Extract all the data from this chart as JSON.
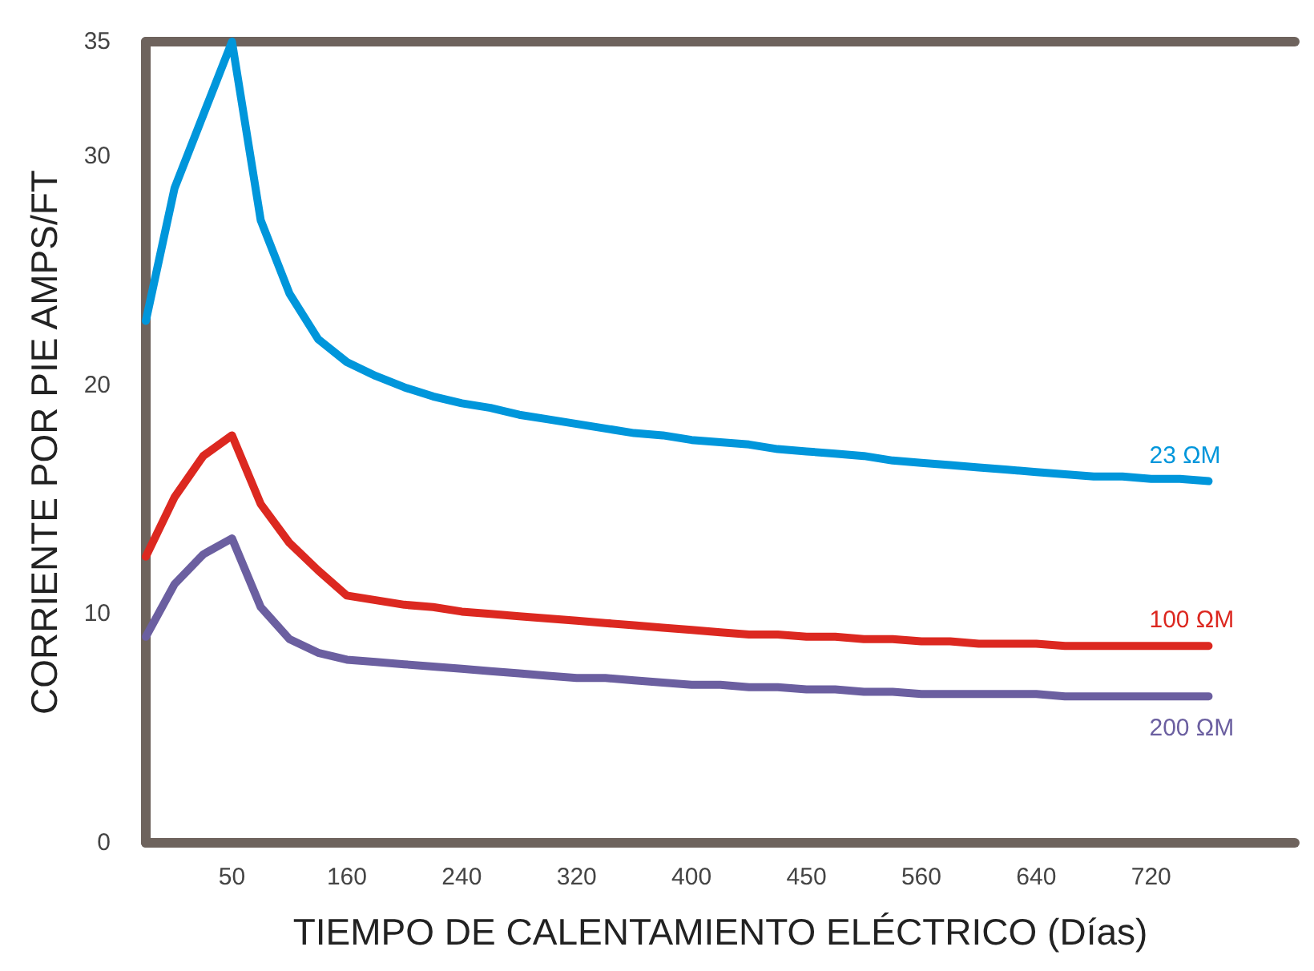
{
  "chart_data": {
    "type": "line",
    "xlabel": "TIEMPO DE CALENTAMIENTO ELÉCTRICO (Días)",
    "ylabel": "CORRIENTE POR PIE AMPS/FT",
    "categories": [
      null,
      null,
      null,
      "50",
      null,
      null,
      null,
      "160",
      null,
      null,
      null,
      "240",
      null,
      null,
      null,
      "320",
      null,
      null,
      null,
      "400",
      null,
      null,
      null,
      "450",
      null,
      null,
      null,
      "560",
      null,
      null,
      null,
      "640",
      null,
      null,
      null,
      "720",
      null,
      null,
      null,
      null,
      null
    ],
    "ylim": [
      0,
      35
    ],
    "yticks": [
      0,
      10,
      20,
      30,
      35
    ],
    "marker": "none",
    "line_style": "solid",
    "series": [
      {
        "name": "23 ΩM",
        "color": "#0096db",
        "values": [
          22.8,
          28.6,
          31.8,
          35,
          27.2,
          24,
          22,
          21.0,
          20.4,
          19.9,
          19.5,
          19.2,
          19.0,
          18.7,
          18.5,
          18.3,
          18.1,
          17.9,
          17.8,
          17.6,
          17.5,
          17.4,
          17.2,
          17.1,
          17.0,
          16.9,
          16.7,
          16.6,
          16.5,
          16.4,
          16.3,
          16.2,
          16.1,
          16.0,
          16.0,
          15.9,
          15.9,
          15.8,
          null,
          null,
          null
        ]
      },
      {
        "name": "100 ΩM",
        "color": "#dc2820",
        "values": [
          12.5,
          15.1,
          16.9,
          17.8,
          14.8,
          13.1,
          11.9,
          10.8,
          10.6,
          10.4,
          10.3,
          10.1,
          10.0,
          9.9,
          9.8,
          9.7,
          9.6,
          9.5,
          9.4,
          9.3,
          9.2,
          9.1,
          9.1,
          9.0,
          9.0,
          8.9,
          8.9,
          8.8,
          8.8,
          8.7,
          8.7,
          8.7,
          8.6,
          8.6,
          8.6,
          8.6,
          8.6,
          8.6,
          null,
          null,
          null
        ]
      },
      {
        "name": "200 ΩM",
        "color": "#6b5fa0",
        "values": [
          9.0,
          11.3,
          12.6,
          13.3,
          10.3,
          8.9,
          8.3,
          8.0,
          7.9,
          7.8,
          7.7,
          7.6,
          7.5,
          7.4,
          7.3,
          7.2,
          7.2,
          7.1,
          7.0,
          6.9,
          6.9,
          6.8,
          6.8,
          6.7,
          6.7,
          6.6,
          6.6,
          6.5,
          6.5,
          6.5,
          6.5,
          6.5,
          6.4,
          6.4,
          6.4,
          6.4,
          6.4,
          6.4,
          null,
          null,
          null
        ]
      }
    ]
  }
}
